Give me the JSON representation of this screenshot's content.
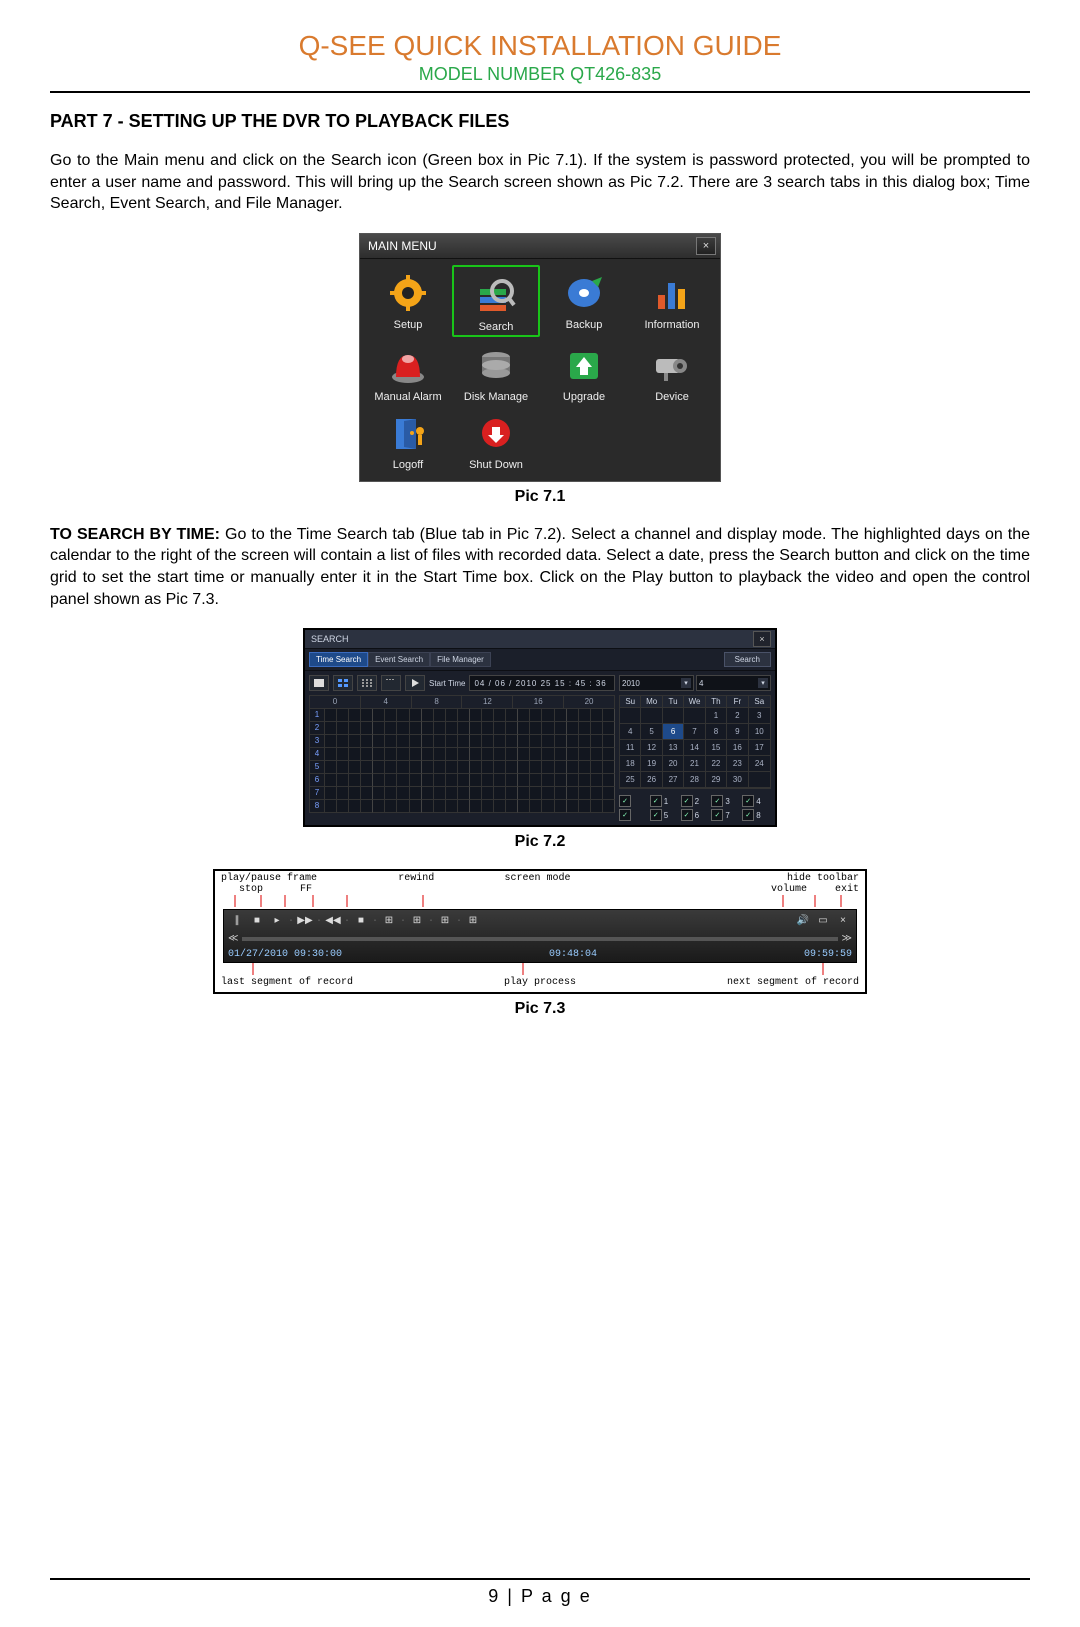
{
  "header": {
    "title_main": "Q-SEE QUICK INSTALLATION GUIDE",
    "title_sub": "MODEL NUMBER QT426-835"
  },
  "section_title": "PART 7 - SETTING UP THE DVR TO PLAYBACK FILES",
  "para1": "Go to the Main menu and click on the Search icon (Green box in Pic 7.1). If the system is password protected, you will be prompted to enter a user name and password. This will bring up the Search screen shown as Pic 7.2. There are 3 search tabs in this dialog box; Time Search, Event Search, and File Manager.",
  "para2_lead": "TO SEARCH BY TIME: ",
  "para2_body": "Go to the Time Search tab (Blue tab in Pic 7.2). Select a channel and display mode. The highlighted days on the calendar to the right of the screen will contain a list of files with recorded data. Select a date, press the Search button and click on the time grid to set the start time or manually enter it in the Start Time box. Click on the Play button to playback the video and open the control panel shown as Pic 7.3.",
  "captions": {
    "p1": "Pic 7.1",
    "p2": "Pic 7.2",
    "p3": "Pic 7.3"
  },
  "footer": "9 | P a g e",
  "mainmenu": {
    "title": "MAIN  MENU",
    "close": "×",
    "items": [
      {
        "label": "Setup",
        "icon": "gear"
      },
      {
        "label": "Search",
        "icon": "search",
        "highlight": true
      },
      {
        "label": "Backup",
        "icon": "disc"
      },
      {
        "label": "Information",
        "icon": "bars"
      },
      {
        "label": "Manual Alarm",
        "icon": "alarm"
      },
      {
        "label": "Disk Manage",
        "icon": "disks"
      },
      {
        "label": "Upgrade",
        "icon": "up"
      },
      {
        "label": "Device",
        "icon": "camera"
      },
      {
        "label": "Logoff",
        "icon": "door"
      },
      {
        "label": "Shut Down",
        "icon": "power"
      }
    ]
  },
  "searchwin": {
    "title": "SEARCH",
    "close": "×",
    "tabs": [
      "Time Search",
      "Event Search",
      "File Manager"
    ],
    "active_tab": 0,
    "search_btn": "Search",
    "start_label": "Start Time",
    "start_value": "04 / 06 / 2010 25  15 : 45 : 36",
    "time_headers": [
      "0",
      "4",
      "8",
      "12",
      "16",
      "20"
    ],
    "channels": [
      "1",
      "2",
      "3",
      "4",
      "5",
      "6",
      "7",
      "8"
    ],
    "year": "2010",
    "month": "4",
    "dow": [
      "Su",
      "Mo",
      "Tu",
      "We",
      "Th",
      "Fr",
      "Sa"
    ],
    "calendar_rows": [
      [
        "",
        "",
        "",
        "",
        "1",
        "2",
        "3"
      ],
      [
        "4",
        "5",
        "6",
        "7",
        "8",
        "9",
        "10"
      ],
      [
        "11",
        "12",
        "13",
        "14",
        "15",
        "16",
        "17"
      ],
      [
        "18",
        "19",
        "20",
        "21",
        "22",
        "23",
        "24"
      ],
      [
        "25",
        "26",
        "27",
        "28",
        "29",
        "30",
        ""
      ]
    ],
    "cal_highlight": "6",
    "ch_checks": [
      "",
      "1",
      "2",
      "3",
      "4",
      "",
      "5",
      "6",
      "7",
      "8"
    ]
  },
  "playbar": {
    "top_left": "play/pause frame",
    "top_l2": "stop",
    "top_l3": "FF",
    "top_mid1": "rewind",
    "top_mid2": "screen  mode",
    "top_right1": "hide toolbar",
    "top_right2": "volume",
    "top_right3": "exit",
    "ts_left": "01/27/2010 09:30:00",
    "ts_mid": "09:48:04",
    "ts_right": "09:59:59",
    "bot_left": "last segment of record",
    "bot_mid": "play process",
    "bot_right": "next segment of record"
  }
}
